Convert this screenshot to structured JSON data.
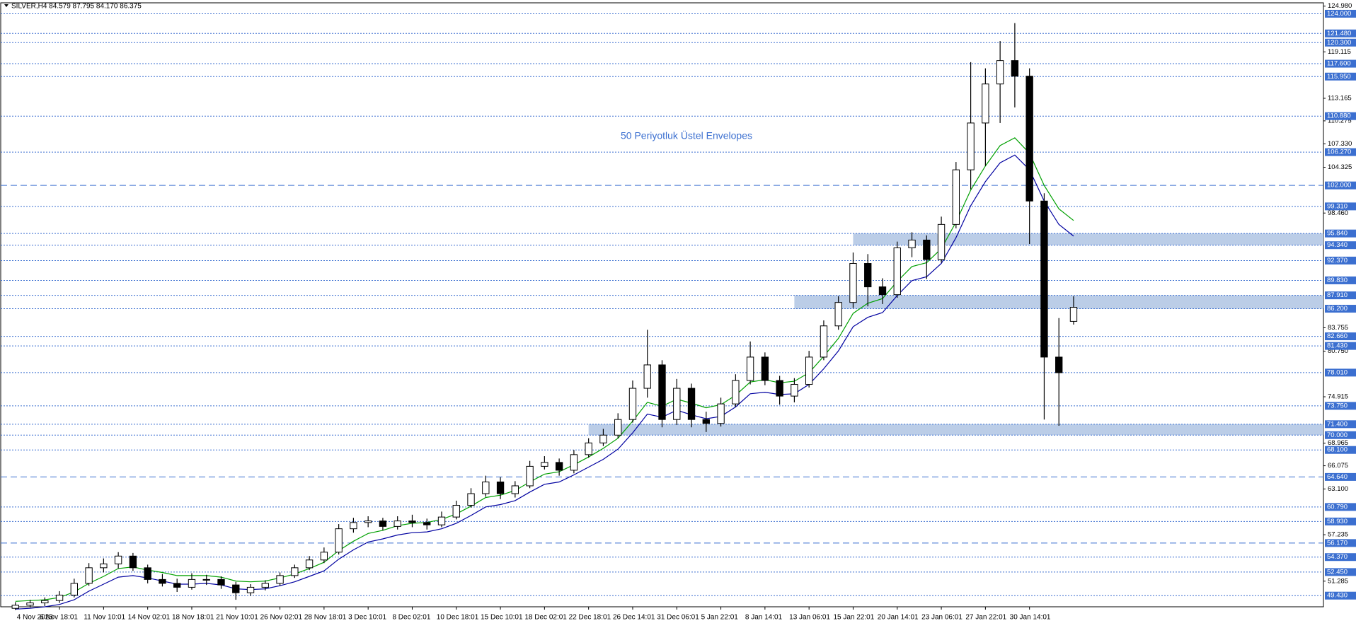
{
  "chart_data": {
    "type": "candlestick",
    "title": "SILVER,H4  84.579 87.795 84.170 86.375",
    "annotation": "50 Periyotluk Üstel Envelopes",
    "xlim": [
      -1,
      89
    ],
    "ylim": [
      48.0,
      125.4
    ],
    "xticks": [
      {
        "value": 0,
        "label": "4 Nov 2025"
      },
      {
        "value": 3,
        "label": "6 Nov 18:01"
      },
      {
        "value": 6,
        "label": "11 Nov 10:01"
      },
      {
        "value": 9,
        "label": "14 Nov 02:01"
      },
      {
        "value": 12,
        "label": "18 Nov 18:01"
      },
      {
        "value": 15,
        "label": "21 Nov 10:01"
      },
      {
        "value": 18,
        "label": "26 Nov 02:01"
      },
      {
        "value": 21,
        "label": "28 Nov 18:01"
      },
      {
        "value": 24,
        "label": "3 Dec 10:01"
      },
      {
        "value": 27,
        "label": "8 Dec 02:01"
      },
      {
        "value": 30,
        "label": "10 Dec 18:01"
      },
      {
        "value": 33,
        "label": "15 Dec 10:01"
      },
      {
        "value": 36,
        "label": "18 Dec 02:01"
      },
      {
        "value": 39,
        "label": "22 Dec 18:01"
      },
      {
        "value": 42,
        "label": "26 Dec 14:01"
      },
      {
        "value": 45,
        "label": "31 Dec 06:01"
      },
      {
        "value": 48,
        "label": "5 Jan 22:01"
      },
      {
        "value": 51,
        "label": "8 Jan 14:01"
      },
      {
        "value": 54,
        "label": "13 Jan 06:01"
      },
      {
        "value": 57,
        "label": "15 Jan 22:01"
      },
      {
        "value": 60,
        "label": "20 Jan 14:01"
      },
      {
        "value": 63,
        "label": "23 Jan 06:01"
      },
      {
        "value": 66,
        "label": "27 Jan 22:01"
      },
      {
        "value": 69,
        "label": "30 Jan 14:01"
      }
    ],
    "yticks": [
      {
        "value": 124.98,
        "label": "124.980"
      },
      {
        "value": 119.115,
        "label": "119.115"
      },
      {
        "value": 113.165,
        "label": "113.165"
      },
      {
        "value": 110.275,
        "label": "110.275"
      },
      {
        "value": 107.33,
        "label": "107.330"
      },
      {
        "value": 104.325,
        "label": "104.325"
      },
      {
        "value": 98.46,
        "label": "98.460"
      },
      {
        "value": 83.755,
        "label": "83.755"
      },
      {
        "value": 80.75,
        "label": "80.750"
      },
      {
        "value": 74.915,
        "label": "74.915"
      },
      {
        "value": 68.965,
        "label": "68.965"
      },
      {
        "value": 66.075,
        "label": "66.075"
      },
      {
        "value": 63.1,
        "label": "63.100"
      },
      {
        "value": 57.235,
        "label": "57.235"
      },
      {
        "value": 51.285,
        "label": "51.285"
      }
    ],
    "levels": [
      {
        "value": 124,
        "label": "124.000",
        "style": "dotted"
      },
      {
        "value": 121.48,
        "label": "121.480",
        "style": "dotted"
      },
      {
        "value": 120.3,
        "label": "120.300",
        "style": "dotted"
      },
      {
        "value": 117.6,
        "label": "117.600",
        "style": "dotted"
      },
      {
        "value": 115.95,
        "label": "115.950",
        "style": "dotted"
      },
      {
        "value": 110.88,
        "label": "110.880",
        "style": "dotted"
      },
      {
        "value": 106.27,
        "label": "106.270",
        "style": "dotted"
      },
      {
        "value": 102,
        "label": "102.000",
        "style": "dashed"
      },
      {
        "value": 99.31,
        "label": "99.310",
        "style": "dotted"
      },
      {
        "value": 95.84,
        "label": "95.840",
        "style": "dotted"
      },
      {
        "value": 94.34,
        "label": "94.340",
        "style": "dotted"
      },
      {
        "value": 92.37,
        "label": "92.370",
        "style": "dotted"
      },
      {
        "value": 89.83,
        "label": "89.830",
        "style": "dotted"
      },
      {
        "value": 87.91,
        "label": "87.910",
        "style": "dotted"
      },
      {
        "value": 86.2,
        "label": "86.200",
        "style": "dotted"
      },
      {
        "value": 82.66,
        "label": "82.660",
        "style": "dotted"
      },
      {
        "value": 81.43,
        "label": "81.430",
        "style": "dotted"
      },
      {
        "value": 78.01,
        "label": "78.010",
        "style": "dotted"
      },
      {
        "value": 73.75,
        "label": "73.750",
        "style": "dotted"
      },
      {
        "value": 71.4,
        "label": "71.400",
        "style": "dotted"
      },
      {
        "value": 70,
        "label": "70.000",
        "style": "dotted"
      },
      {
        "value": 68.1,
        "label": "68.100",
        "style": "dotted"
      },
      {
        "value": 64.64,
        "label": "64.640",
        "style": "dashed"
      },
      {
        "value": 60.79,
        "label": "60.790",
        "style": "dotted"
      },
      {
        "value": 58.93,
        "label": "58.930",
        "style": "dotted"
      },
      {
        "value": 56.17,
        "label": "56.170",
        "style": "dashed"
      },
      {
        "value": 54.37,
        "label": "54.370",
        "style": "dotted"
      },
      {
        "value": 52.45,
        "label": "52.450",
        "style": "dotted"
      },
      {
        "value": 49.43,
        "label": "49.430",
        "style": "dotted"
      }
    ],
    "level_color": "#3b6fd0",
    "zones": [
      {
        "from": 94.34,
        "to": 95.84,
        "start": 57
      },
      {
        "from": 86.2,
        "to": 87.91,
        "start": 53
      },
      {
        "from": 70,
        "to": 71.4,
        "start": 39
      }
    ],
    "zone_color": "#b4c8e4",
    "ohlc": [
      [
        47.8,
        48.6,
        47.6,
        48.2
      ],
      [
        48.2,
        48.9,
        47.9,
        48.5
      ],
      [
        48.5,
        49.2,
        48.1,
        48.8
      ],
      [
        48.8,
        50.0,
        48.5,
        49.5
      ],
      [
        49.5,
        51.6,
        49.2,
        51.0
      ],
      [
        51.0,
        53.6,
        50.7,
        53.0
      ],
      [
        53.0,
        54.2,
        52.4,
        53.5
      ],
      [
        53.5,
        55.0,
        52.9,
        54.5
      ],
      [
        54.5,
        54.9,
        52.6,
        53.0
      ],
      [
        53.0,
        53.4,
        51.0,
        51.5
      ],
      [
        51.5,
        52.2,
        50.6,
        51.0
      ],
      [
        51.0,
        51.6,
        49.9,
        50.5
      ],
      [
        50.5,
        52.3,
        50.2,
        51.5
      ],
      [
        51.5,
        52.1,
        50.8,
        51.5
      ],
      [
        51.5,
        51.9,
        50.3,
        50.8
      ],
      [
        50.8,
        51.2,
        48.9,
        49.8
      ],
      [
        49.8,
        50.9,
        49.4,
        50.5
      ],
      [
        50.5,
        51.4,
        50.1,
        51.0
      ],
      [
        51.0,
        52.4,
        50.7,
        52.0
      ],
      [
        52.0,
        53.4,
        51.7,
        53.0
      ],
      [
        53.0,
        54.5,
        52.7,
        54.0
      ],
      [
        54.0,
        55.6,
        53.6,
        55.0
      ],
      [
        55.0,
        58.6,
        54.7,
        58.0
      ],
      [
        58.0,
        59.4,
        57.5,
        58.8
      ],
      [
        58.8,
        59.6,
        58.2,
        59.0
      ],
      [
        59.0,
        59.4,
        57.8,
        58.3
      ],
      [
        58.3,
        59.6,
        57.9,
        59.0
      ],
      [
        59.0,
        59.8,
        58.2,
        58.8
      ],
      [
        58.8,
        59.3,
        57.9,
        58.5
      ],
      [
        58.5,
        60.2,
        58.2,
        59.5
      ],
      [
        59.5,
        61.6,
        59.2,
        61.0
      ],
      [
        61.0,
        63.2,
        60.7,
        62.5
      ],
      [
        62.5,
        64.8,
        62.1,
        64.0
      ],
      [
        64.0,
        64.6,
        61.8,
        62.5
      ],
      [
        62.5,
        64.1,
        62.0,
        63.5
      ],
      [
        63.5,
        66.7,
        63.2,
        66.0
      ],
      [
        66.0,
        67.3,
        65.6,
        66.5
      ],
      [
        66.5,
        67.0,
        64.8,
        65.5
      ],
      [
        65.5,
        68.1,
        65.1,
        67.5
      ],
      [
        67.5,
        69.6,
        67.1,
        69.0
      ],
      [
        69.0,
        70.8,
        68.6,
        70.0
      ],
      [
        70.0,
        72.8,
        69.6,
        72.0
      ],
      [
        72.0,
        77.0,
        71.6,
        76.0
      ],
      [
        76.0,
        83.5,
        74.8,
        79.0
      ],
      [
        79.0,
        79.6,
        71.0,
        72.0
      ],
      [
        72.0,
        77.2,
        71.3,
        76.0
      ],
      [
        76.0,
        76.6,
        71.0,
        72.0
      ],
      [
        72.0,
        73.0,
        70.4,
        71.5
      ],
      [
        71.5,
        74.8,
        71.1,
        74.0
      ],
      [
        74.0,
        77.8,
        73.6,
        77.0
      ],
      [
        77.0,
        82.0,
        76.5,
        80.0
      ],
      [
        80.0,
        80.6,
        76.4,
        77.0
      ],
      [
        77.0,
        77.6,
        73.9,
        75.0
      ],
      [
        75.0,
        77.3,
        74.2,
        76.5
      ],
      [
        76.5,
        80.8,
        76.1,
        80.0
      ],
      [
        80.0,
        84.7,
        79.6,
        84.0
      ],
      [
        84.0,
        87.8,
        83.5,
        87.0
      ],
      [
        87.0,
        93.4,
        86.3,
        92.0
      ],
      [
        92.0,
        93.2,
        86.5,
        89.0
      ],
      [
        89.0,
        90.1,
        86.8,
        88.0
      ],
      [
        88.0,
        94.8,
        87.6,
        94.0
      ],
      [
        94.0,
        96.0,
        92.8,
        95.0
      ],
      [
        95.0,
        95.6,
        90.0,
        92.5
      ],
      [
        92.5,
        98.0,
        92.1,
        97.0
      ],
      [
        97.0,
        105.0,
        96.5,
        104.0
      ],
      [
        104.0,
        117.8,
        101.5,
        110.0
      ],
      [
        110.0,
        117.0,
        104.5,
        115.0
      ],
      [
        115.0,
        120.5,
        110.0,
        118.0
      ],
      [
        118.0,
        122.8,
        112.0,
        116.0
      ],
      [
        116.0,
        117.0,
        94.5,
        100.0
      ],
      [
        100.0,
        101.0,
        72.0,
        80.0
      ],
      [
        80.0,
        85.0,
        71.2,
        78.0
      ],
      [
        84.579,
        87.795,
        84.17,
        86.375
      ]
    ],
    "series": [
      {
        "color": "#00a000",
        "values": [
          48.7,
          48.8,
          48.9,
          49.2,
          49.9,
          51.0,
          51.9,
          52.9,
          53.1,
          52.7,
          52.4,
          52.0,
          52.0,
          52.0,
          51.8,
          51.3,
          51.2,
          51.3,
          51.7,
          52.2,
          52.9,
          53.7,
          55.2,
          56.4,
          57.4,
          57.8,
          58.4,
          58.7,
          58.8,
          59.2,
          59.9,
          60.9,
          62.0,
          62.3,
          62.9,
          64.0,
          65.0,
          65.3,
          66.2,
          67.2,
          68.3,
          69.6,
          71.8,
          74.2,
          73.7,
          74.6,
          74.1,
          73.5,
          73.9,
          75.1,
          76.8,
          77.1,
          76.7,
          76.9,
          78.0,
          80.1,
          82.4,
          85.6,
          86.9,
          87.5,
          89.7,
          91.6,
          92.1,
          93.9,
          97.3,
          101.4,
          104.5,
          107.1,
          108.1,
          106.1,
          102.0,
          99.0,
          97.5
        ]
      },
      {
        "color": "#0000a0",
        "values": [
          47.7,
          47.8,
          48.0,
          48.3,
          48.9,
          50.0,
          50.9,
          51.8,
          52.0,
          51.7,
          51.3,
          50.9,
          50.9,
          51.0,
          50.8,
          50.3,
          50.2,
          50.3,
          50.7,
          51.2,
          51.9,
          52.6,
          54.1,
          55.3,
          56.3,
          56.7,
          57.2,
          57.5,
          57.6,
          58.0,
          58.7,
          59.7,
          60.8,
          61.1,
          61.6,
          62.7,
          63.7,
          64.0,
          64.9,
          65.9,
          66.9,
          68.2,
          70.3,
          72.7,
          72.3,
          73.2,
          72.6,
          72.1,
          72.4,
          73.6,
          75.3,
          75.5,
          75.2,
          75.3,
          76.5,
          78.5,
          80.8,
          83.9,
          85.1,
          85.7,
          87.9,
          89.8,
          90.3,
          92.0,
          95.3,
          99.4,
          102.5,
          104.9,
          105.9,
          104.0,
          100.0,
          97.0,
          95.5
        ]
      }
    ]
  }
}
